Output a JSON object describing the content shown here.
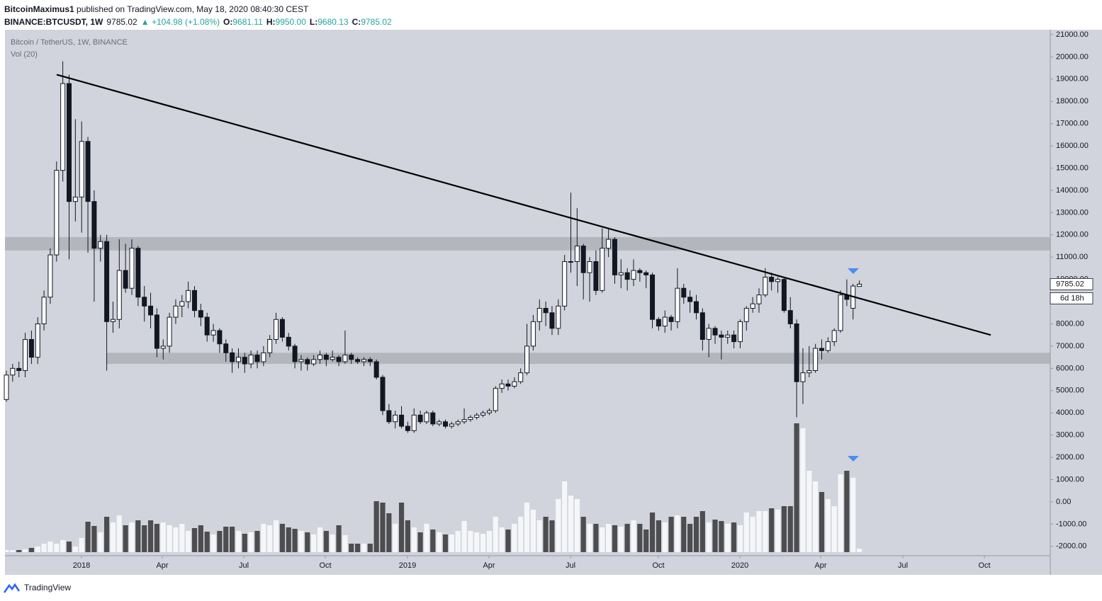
{
  "header": {
    "author": "BitcoinMaximus1",
    "published": "published on TradingView.com, May 18, 2020 08:40:30 CEST",
    "symbol": "BINANCE:BTCUSDT, 1W",
    "price": "9785.02",
    "change": "▲ +104.98 (+1.08%)",
    "o_label": "O:",
    "o": "9681.11",
    "h_label": "H:",
    "h": "9950.00",
    "l_label": "L:",
    "l": "9680.13",
    "c_label": "C:",
    "c": "9785.02"
  },
  "chart_data": {
    "type": "candlestick",
    "title": "Bitcoin / TetherUS, 1W, BINANCE",
    "volume_label": "Vol (20)",
    "open": [
      4600,
      5700,
      6000,
      5900,
      7300,
      6500,
      8000,
      9200,
      11100,
      14900,
      18800,
      13500,
      13700,
      16200,
      13500,
      11400,
      11700,
      8100,
      8200,
      10400,
      9600,
      11400,
      9200,
      8800,
      8400,
      6900,
      7000,
      8300,
      8800,
      9000,
      9500,
      8600,
      8300,
      7500,
      7700,
      7100,
      6700,
      6300,
      6500,
      6200,
      6600,
      6300,
      6700,
      7300,
      8200,
      7400,
      7000,
      6300,
      6400,
      6200,
      6400,
      6600,
      6400,
      6500,
      6300,
      6600,
      6400,
      6300,
      6400,
      6300,
      5600,
      4100,
      3600,
      3900,
      3400,
      3200,
      3900,
      3600,
      4000,
      3500,
      3600,
      3400,
      3500,
      3600,
      3700,
      3800,
      3900,
      4000,
      4100,
      5100,
      5300,
      5200,
      5400,
      5800,
      7000,
      8100,
      8700,
      8500,
      7800,
      8800,
      10800,
      10800,
      11500,
      10300,
      10800,
      9500,
      11400,
      11800,
      10200,
      10300,
      10000,
      10400,
      10300,
      10200,
      8200,
      7900,
      8300,
      8100,
      9600,
      9200,
      9000,
      8500,
      7300,
      7800,
      7500,
      7400,
      7500,
      7200,
      8100,
      8700,
      8900,
      9300,
      10100,
      9900,
      10000,
      8600,
      8000,
      5400,
      5800,
      5900,
      6900,
      6800,
      7200,
      7700,
      9300,
      8700,
      9681.11
    ],
    "high": [
      5900,
      6200,
      6300,
      7600,
      7700,
      8300,
      9500,
      11400,
      15300,
      19800,
      19200,
      17200,
      17100,
      16400,
      14000,
      12000,
      12000,
      9000,
      11800,
      11600,
      11800,
      11500,
      9700,
      9400,
      8700,
      7300,
      8500,
      9100,
      9300,
      9900,
      9700,
      8900,
      8500,
      8000,
      7800,
      7300,
      6900,
      6900,
      6700,
      6800,
      6800,
      7000,
      7500,
      8500,
      8300,
      7600,
      7100,
      6600,
      6500,
      6600,
      6800,
      6700,
      6800,
      6600,
      7700,
      6700,
      6500,
      6500,
      6500,
      6400,
      5700,
      4400,
      4100,
      4300,
      3600,
      4200,
      4100,
      4100,
      4100,
      3700,
      3700,
      3600,
      3700,
      4200,
      3900,
      4000,
      4100,
      4200,
      5200,
      5500,
      5500,
      5600,
      6000,
      8000,
      8400,
      9100,
      9000,
      8800,
      9100,
      11100,
      13900,
      13200,
      11600,
      11000,
      11300,
      12300,
      12300,
      11900,
      10900,
      10500,
      10900,
      10500,
      10400,
      10300,
      8300,
      8600,
      8400,
      10500,
      9800,
      9500,
      9300,
      8700,
      8000,
      7900,
      7700,
      7700,
      7700,
      8200,
      8800,
      9200,
      9600,
      10500,
      10300,
      10100,
      10100,
      9200,
      8200,
      6900,
      7000,
      7100,
      7300,
      7400,
      7800,
      9500,
      10000,
      9800,
      9950
    ],
    "low": [
      4500,
      5400,
      5600,
      5600,
      6200,
      6200,
      7700,
      8900,
      10800,
      14400,
      10900,
      12600,
      12100,
      11200,
      9000,
      10800,
      5900,
      7600,
      7800,
      9400,
      9300,
      8800,
      8100,
      7800,
      6500,
      6400,
      6700,
      8000,
      8300,
      8700,
      8300,
      7900,
      7200,
      7200,
      6700,
      6300,
      5800,
      6000,
      5800,
      6000,
      6000,
      6100,
      6500,
      7100,
      7200,
      6800,
      6000,
      5900,
      5900,
      6100,
      6200,
      6100,
      6300,
      6100,
      6200,
      6200,
      6200,
      6100,
      6100,
      5500,
      3900,
      3500,
      3300,
      3300,
      3100,
      3100,
      3500,
      3500,
      3400,
      3400,
      3300,
      3300,
      3400,
      3500,
      3600,
      3700,
      3800,
      3900,
      4000,
      4900,
      5000,
      5100,
      5300,
      5700,
      6800,
      7700,
      7900,
      7500,
      7500,
      8600,
      10300,
      9700,
      9100,
      9000,
      9300,
      9400,
      11000,
      9800,
      9600,
      9500,
      9700,
      9900,
      9600,
      7800,
      7700,
      7600,
      7700,
      7800,
      8900,
      8500,
      8200,
      6800,
      6500,
      7100,
      6400,
      7100,
      6900,
      6900,
      7700,
      8500,
      8500,
      9200,
      9500,
      9400,
      8500,
      7800,
      3800,
      4400,
      5600,
      5800,
      6400,
      6700,
      7000,
      7600,
      8800,
      8200,
      9680.13
    ],
    "close": [
      5700,
      6000,
      5900,
      7300,
      6500,
      8000,
      9200,
      11100,
      14900,
      18800,
      13500,
      13700,
      16200,
      13500,
      11400,
      11700,
      8100,
      8200,
      10400,
      9600,
      11400,
      9200,
      8800,
      8400,
      6900,
      7000,
      8300,
      8800,
      9000,
      9500,
      8600,
      8300,
      7500,
      7700,
      7100,
      6700,
      6300,
      6500,
      6200,
      6600,
      6300,
      6700,
      7300,
      8200,
      7400,
      7000,
      6300,
      6400,
      6200,
      6400,
      6600,
      6400,
      6500,
      6300,
      6600,
      6400,
      6300,
      6400,
      6300,
      5600,
      4100,
      3600,
      3900,
      3400,
      3200,
      3900,
      3600,
      4000,
      3500,
      3600,
      3400,
      3500,
      3600,
      3700,
      3800,
      3900,
      4000,
      4100,
      5100,
      5300,
      5200,
      5400,
      5800,
      7000,
      8100,
      8700,
      8500,
      7800,
      8800,
      10800,
      10800,
      11500,
      10300,
      10800,
      9500,
      11400,
      11800,
      10200,
      10300,
      10000,
      10400,
      10300,
      10200,
      8200,
      7900,
      8300,
      8100,
      9600,
      9200,
      9000,
      8500,
      7300,
      7800,
      7500,
      7400,
      7500,
      7200,
      8100,
      8700,
      8900,
      9300,
      10100,
      9900,
      10000,
      8600,
      8000,
      5400,
      5800,
      5900,
      6900,
      6800,
      7200,
      7700,
      9300,
      9100,
      9700,
      9785.02
    ],
    "volume": [
      3,
      3,
      3,
      4,
      6,
      8,
      12,
      15,
      12,
      17,
      15,
      8,
      20,
      43,
      37,
      28,
      50,
      42,
      52,
      38,
      42,
      45,
      38,
      45,
      40,
      42,
      38,
      35,
      40,
      30,
      34,
      38,
      29,
      25,
      30,
      36,
      36,
      30,
      26,
      28,
      30,
      40,
      38,
      45,
      40,
      35,
      33,
      30,
      28,
      25,
      35,
      30,
      25,
      38,
      24,
      12,
      12,
      12,
      12,
      72,
      70,
      55,
      40,
      70,
      45,
      35,
      28,
      40,
      32,
      28,
      25,
      25,
      30,
      44,
      30,
      28,
      26,
      30,
      50,
      35,
      32,
      40,
      50,
      70,
      60,
      45,
      50,
      45,
      75,
      100,
      80,
      75,
      50,
      40,
      40,
      35,
      40,
      38,
      36,
      40,
      45,
      40,
      32,
      56,
      45,
      42,
      50,
      52,
      50,
      40,
      50,
      58,
      42,
      46,
      44,
      40,
      42,
      38,
      56,
      50,
      58,
      58,
      62,
      60,
      65,
      65,
      182,
      175,
      115,
      100,
      85,
      75,
      65,
      110,
      115,
      105,
      5
    ],
    "up_color": "#ffffff",
    "down_color": "#131722",
    "up_volume_color": "#f5f6f8",
    "down_volume_color": "#4d4d4f",
    "ylim": [
      -2420,
      21220
    ],
    "yticks": [
      {
        "value": 21000,
        "label": "21000.00"
      },
      {
        "value": 20000,
        "label": "20000.00"
      },
      {
        "value": 19000,
        "label": "19000.00"
      },
      {
        "value": 18000,
        "label": "18000.00"
      },
      {
        "value": 17000,
        "label": "17000.00"
      },
      {
        "value": 16000,
        "label": "16000.00"
      },
      {
        "value": 15000,
        "label": "15000.00"
      },
      {
        "value": 14000,
        "label": "14000.00"
      },
      {
        "value": 13000,
        "label": "13000.00"
      },
      {
        "value": 12000,
        "label": "12000.00"
      },
      {
        "value": 11000,
        "label": "11000.00"
      },
      {
        "value": 10000,
        "label": "10000.00"
      },
      {
        "value": 9000,
        "label": "9000.00"
      },
      {
        "value": 8000,
        "label": "8000.00"
      },
      {
        "value": 7000,
        "label": "7000.00"
      },
      {
        "value": 6000,
        "label": "6000.00"
      },
      {
        "value": 5000,
        "label": "5000.00"
      },
      {
        "value": 4000,
        "label": "4000.00"
      },
      {
        "value": 3000,
        "label": "3000.00"
      },
      {
        "value": 2000,
        "label": "2000.00"
      },
      {
        "value": 1000,
        "label": "1000.00"
      },
      {
        "value": 0,
        "label": "0.00"
      },
      {
        "value": -1000,
        "label": "-1000.00"
      },
      {
        "value": -2000,
        "label": "-2000.00"
      }
    ],
    "xticks": [
      "2018",
      "Apr",
      "Jul",
      "Oct",
      "2019",
      "Apr",
      "Jul",
      "Oct",
      "2020",
      "Apr",
      "Jul",
      "Oct"
    ],
    "zones": [
      {
        "from": 11300,
        "to": 11900
      },
      {
        "from": 6200,
        "to": 6700
      }
    ],
    "trendline": {
      "start": 19200,
      "end": 7500
    },
    "last_price_label": "9785.02",
    "countdown": "6d 18h"
  },
  "footer": {
    "brand": "TradingView"
  }
}
